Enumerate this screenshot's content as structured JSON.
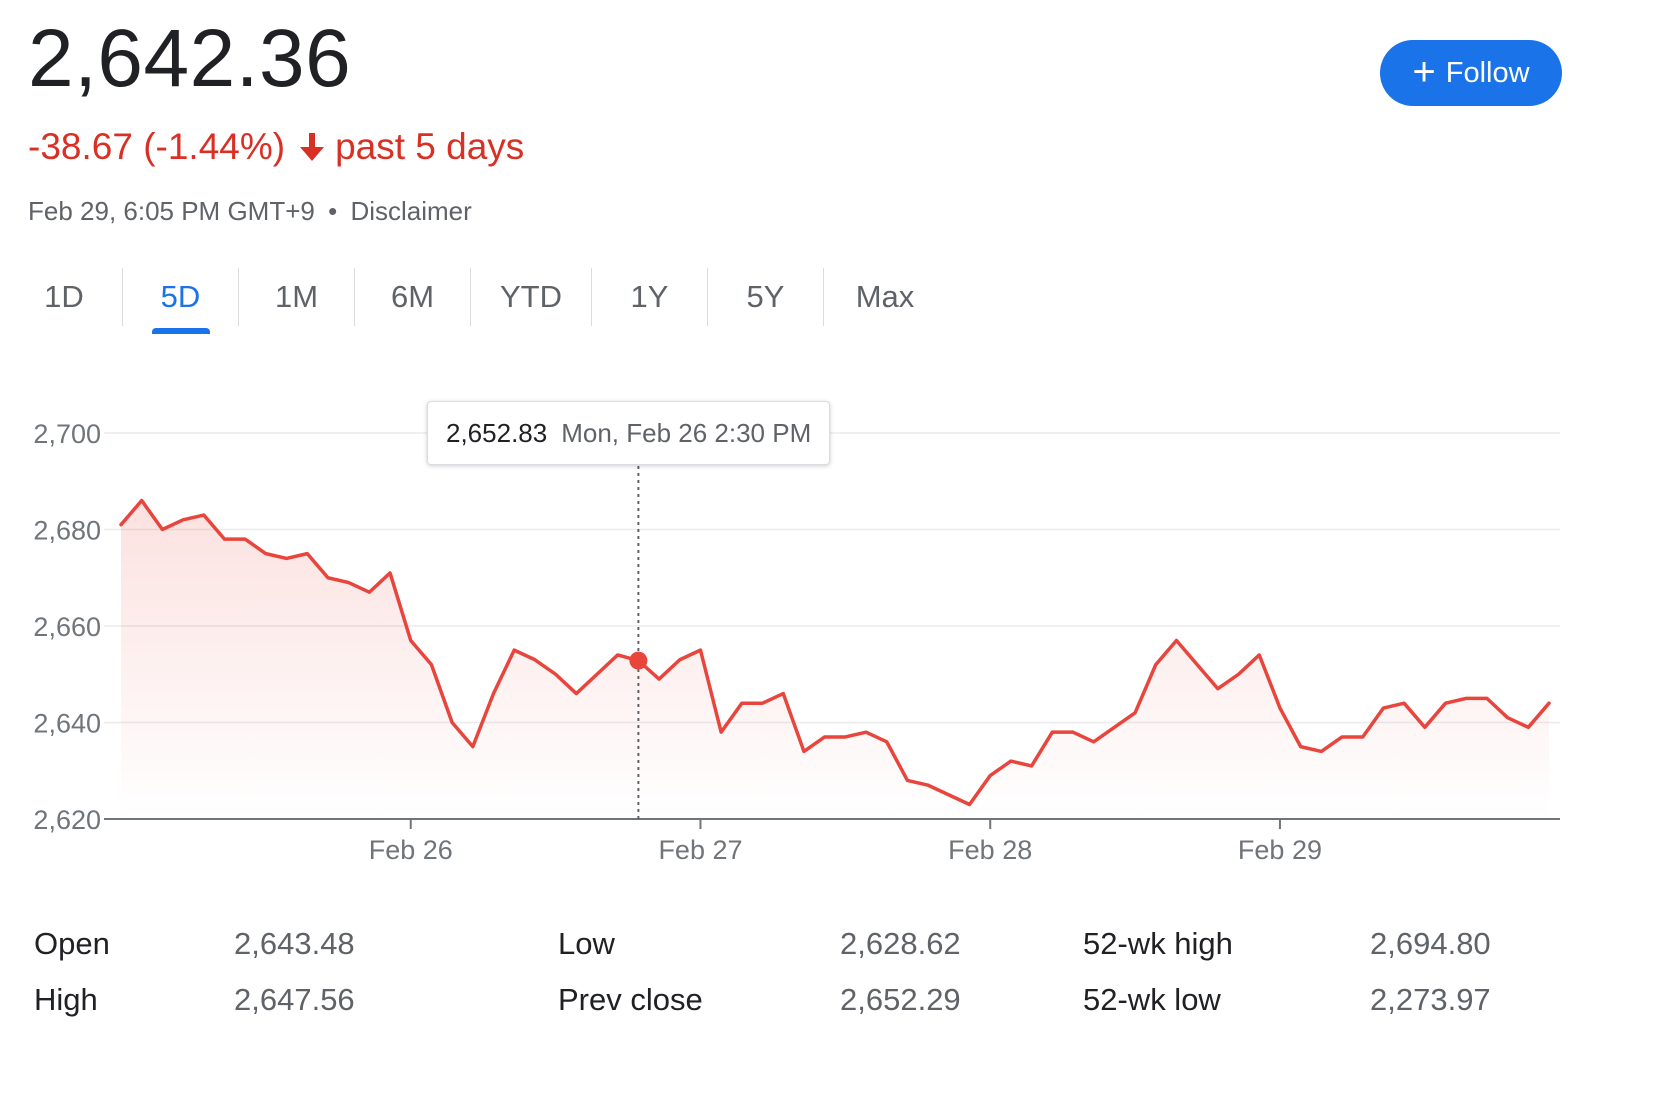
{
  "header": {
    "price": "2,642.36",
    "change": "-38.67 (-1.44%)",
    "period": "past 5 days",
    "timestamp": "Feb 29, 6:05 PM GMT+9",
    "separator": "•",
    "disclaimer": "Disclaimer",
    "down_color": "#d93025"
  },
  "follow_button": {
    "label": "Follow",
    "icon": "plus-icon",
    "color": "#1a73e8"
  },
  "tabs": [
    {
      "label": "1D",
      "active": false
    },
    {
      "label": "5D",
      "active": true
    },
    {
      "label": "1M",
      "active": false
    },
    {
      "label": "6M",
      "active": false
    },
    {
      "label": "YTD",
      "active": false
    },
    {
      "label": "1Y",
      "active": false
    },
    {
      "label": "5Y",
      "active": false
    },
    {
      "label": "Max",
      "active": false
    }
  ],
  "tooltip": {
    "value": "2,652.83",
    "date": "Mon, Feb 26 2:30 PM"
  },
  "chart_data": {
    "type": "area",
    "series": [
      {
        "values": [
          2681,
          2686,
          2680,
          2682,
          2683,
          2678,
          2678,
          2675,
          2674,
          2675,
          2670,
          2669,
          2667,
          2671,
          2657,
          2652,
          2640,
          2635,
          2646,
          2655,
          2653,
          2650,
          2646,
          2650,
          2654,
          2652.83,
          2649,
          2653,
          2655,
          2638,
          2644,
          2644,
          2646,
          2634,
          2637,
          2637,
          2638,
          2636,
          2628,
          2627,
          2625,
          2623,
          2629,
          2632,
          2631,
          2638,
          2638,
          2636,
          2639,
          2642,
          2652,
          2657,
          2652,
          2647,
          2650,
          2654,
          2643,
          2635,
          2634,
          2637,
          2637,
          2643,
          2644,
          2639,
          2644,
          2645,
          2645,
          2641,
          2639,
          2644
        ]
      }
    ],
    "x_ticks": [
      {
        "label": "Feb 26",
        "index": 14
      },
      {
        "label": "Feb 27",
        "index": 28
      },
      {
        "label": "Feb 28",
        "index": 42
      },
      {
        "label": "Feb 29",
        "index": 56
      }
    ],
    "y_ticks": [
      2700,
      2680,
      2660,
      2640,
      2620
    ],
    "y_tick_labels": [
      "2,700",
      "2,680",
      "2,660",
      "2,640",
      "2,620"
    ],
    "ylim": [
      2620,
      2700
    ],
    "highlight_index": 25,
    "line_color": "#e8453c",
    "grid": true
  },
  "stats": {
    "open": {
      "label": "Open",
      "value": "2,643.48"
    },
    "high": {
      "label": "High",
      "value": "2,647.56"
    },
    "low": {
      "label": "Low",
      "value": "2,628.62"
    },
    "prev_close": {
      "label": "Prev close",
      "value": "2,652.29"
    },
    "wk52_high": {
      "label": "52-wk high",
      "value": "2,694.80"
    },
    "wk52_low": {
      "label": "52-wk low",
      "value": "2,273.97"
    }
  }
}
